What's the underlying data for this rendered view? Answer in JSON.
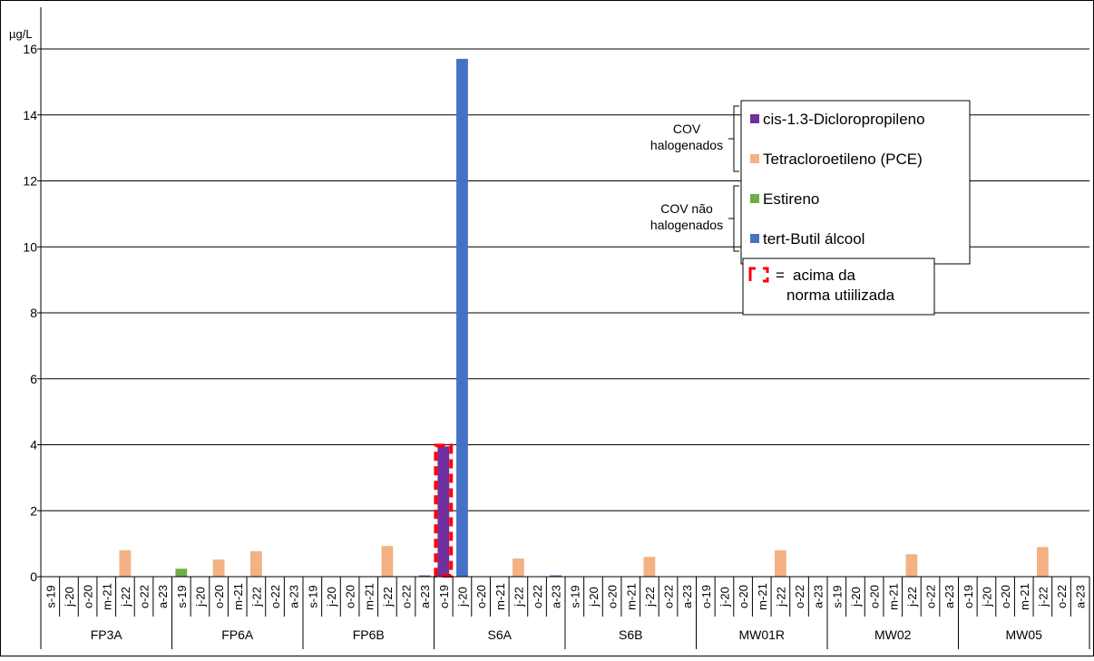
{
  "chart_data": {
    "type": "bar",
    "unit_label": "µg/L",
    "ylim": [
      0,
      16
    ],
    "yticks": [
      0,
      2,
      4,
      6,
      8,
      10,
      12,
      14,
      16
    ],
    "grid": true,
    "groups": [
      {
        "name": "FP3A",
        "dates": [
          "s-19",
          "j-20",
          "o-20",
          "m-21",
          "j-22",
          "o-22",
          "a-23"
        ]
      },
      {
        "name": "FP6A",
        "dates": [
          "s-19",
          "j-20",
          "o-20",
          "m-21",
          "j-22",
          "o-22",
          "a-23"
        ]
      },
      {
        "name": "FP6B",
        "dates": [
          "s-19",
          "j-20",
          "o-20",
          "m-21",
          "j-22",
          "o-22",
          "a-23"
        ]
      },
      {
        "name": "S6A",
        "dates": [
          "o-19",
          "j-20",
          "o-20",
          "m-21",
          "j-22",
          "o-22",
          "a-23"
        ]
      },
      {
        "name": "S6B",
        "dates": [
          "s-19",
          "j-20",
          "o-20",
          "m-21",
          "j-22",
          "o-22",
          "a-23"
        ]
      },
      {
        "name": "MW01R",
        "dates": [
          "o-19",
          "j-20",
          "o-20",
          "m-21",
          "j-22",
          "o-22",
          "a-23"
        ]
      },
      {
        "name": "MW02",
        "dates": [
          "s-19",
          "j-20",
          "o-20",
          "m-21",
          "j-22",
          "o-22",
          "a-23"
        ]
      },
      {
        "name": "MW05",
        "dates": [
          "o-19",
          "j-20",
          "o-20",
          "m-21",
          "j-22",
          "o-22",
          "a-23"
        ]
      }
    ],
    "series": [
      {
        "name": "cis-1.3-Dicloropropileno",
        "color": "#7030A0"
      },
      {
        "name": "Tetracloroetileno (PCE)",
        "color": "#F4B183"
      },
      {
        "name": "Estireno",
        "color": "#70AD47"
      },
      {
        "name": "tert-Butil álcool",
        "color": "#4472C4"
      }
    ],
    "bars": [
      {
        "group": "FP3A",
        "date": "j-22",
        "series": "Tetracloroetileno (PCE)",
        "value": 0.8
      },
      {
        "group": "FP6A",
        "date": "s-19",
        "series": "Estireno",
        "value": 0.24
      },
      {
        "group": "FP6A",
        "date": "o-20",
        "series": "Tetracloroetileno (PCE)",
        "value": 0.52
      },
      {
        "group": "FP6A",
        "date": "j-22",
        "series": "Tetracloroetileno (PCE)",
        "value": 0.77
      },
      {
        "group": "FP6B",
        "date": "j-22",
        "series": "Tetracloroetileno (PCE)",
        "value": 0.93
      },
      {
        "group": "FP6B",
        "date": "a-23",
        "series": "tert-Butil álcool",
        "value": 0.04
      },
      {
        "group": "S6A",
        "date": "o-19",
        "series": "cis-1.3-Dicloropropileno",
        "value": 3.95,
        "above_norm": true
      },
      {
        "group": "S6A",
        "date": "j-20",
        "series": "tert-Butil álcool",
        "value": 15.7
      },
      {
        "group": "S6A",
        "date": "j-22",
        "series": "Tetracloroetileno (PCE)",
        "value": 0.55
      },
      {
        "group": "S6A",
        "date": "a-23",
        "series": "tert-Butil álcool",
        "value": 0.04
      },
      {
        "group": "S6B",
        "date": "j-22",
        "series": "Tetracloroetileno (PCE)",
        "value": 0.6
      },
      {
        "group": "MW01R",
        "date": "j-22",
        "series": "Tetracloroetileno (PCE)",
        "value": 0.8
      },
      {
        "group": "MW02",
        "date": "j-22",
        "series": "Tetracloroetileno (PCE)",
        "value": 0.68
      },
      {
        "group": "MW05",
        "date": "j-22",
        "series": "Tetracloroetileno (PCE)",
        "value": 0.9
      }
    ],
    "legend": {
      "placement": "top-right",
      "groups": [
        {
          "label_lines": [
            "COV",
            "halogenados"
          ],
          "series": [
            "cis-1.3-Dicloropropileno",
            "Tetracloroetileno (PCE)"
          ]
        },
        {
          "label_lines": [
            "COV não",
            "halogenados"
          ],
          "series": [
            "Estireno",
            "tert-Butil álcool"
          ]
        }
      ],
      "norm_note": {
        "symbol": "=",
        "lines": [
          "acima da",
          "norma utiilizada"
        ],
        "color": "#FF0000"
      }
    }
  }
}
